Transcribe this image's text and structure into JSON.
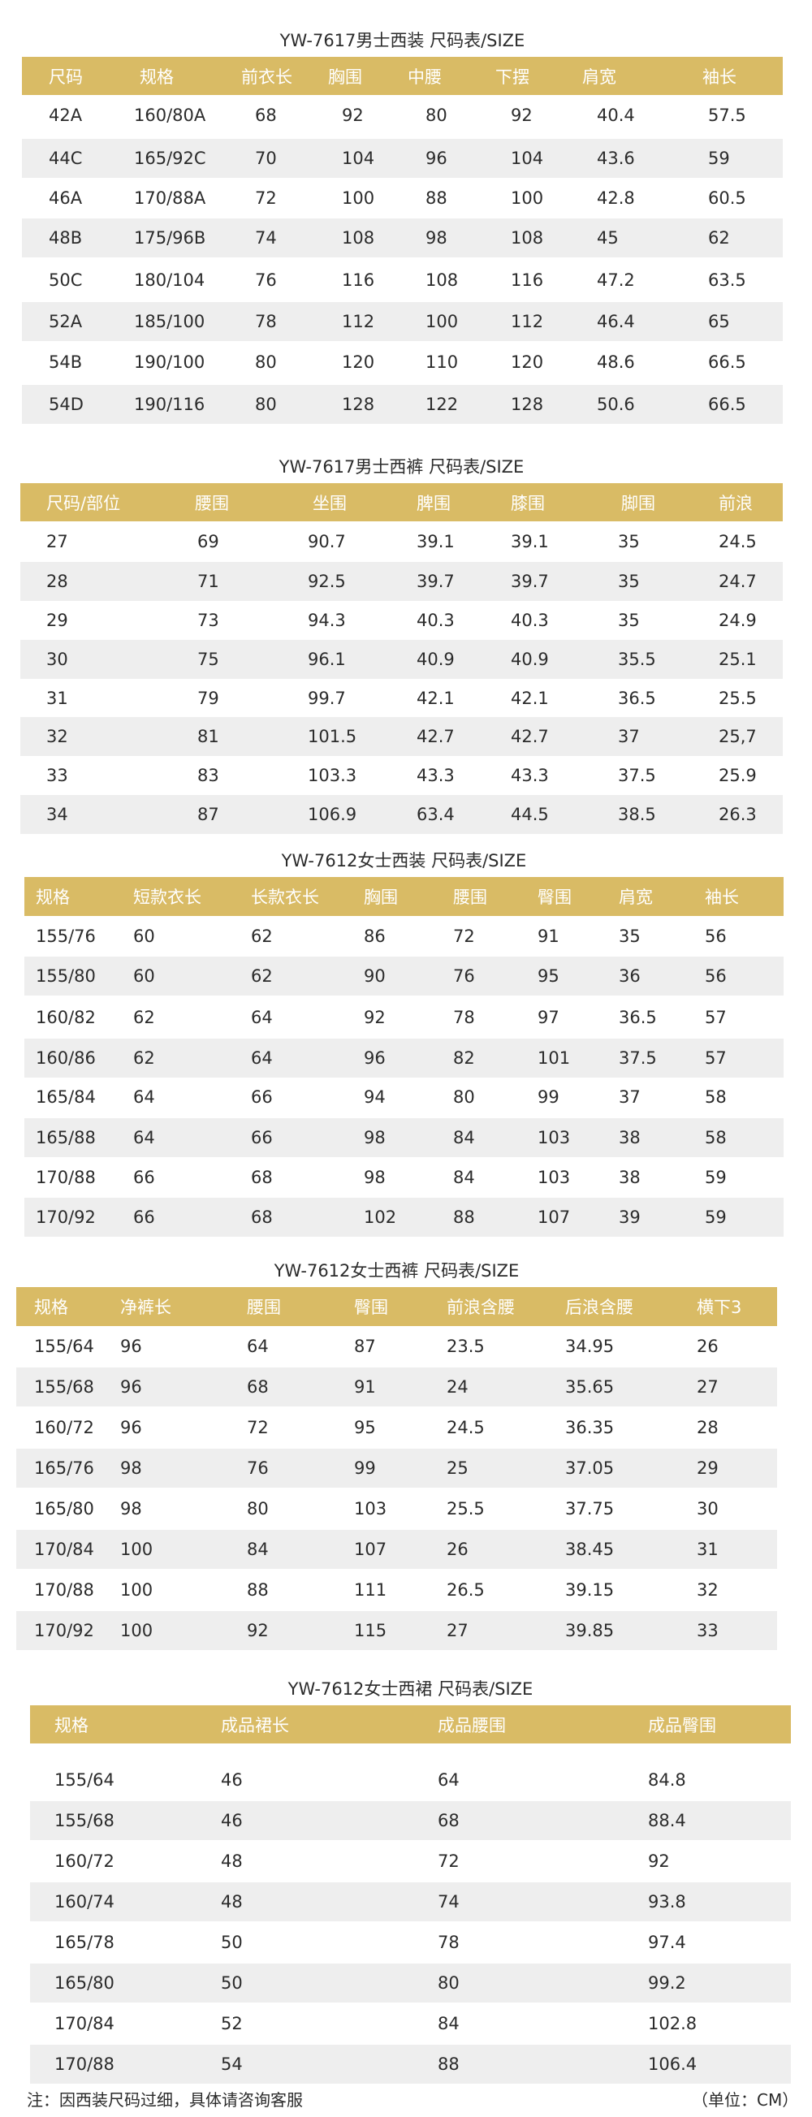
{
  "tables": [
    {
      "title": "YW-7617男士西装 尺码表/SIZE",
      "headers": [
        "尺码",
        "规格",
        "前衣长",
        "胸围",
        "中腰",
        "下摆",
        "肩宽",
        "袖长"
      ],
      "rows": [
        [
          "42A",
          "160/80A",
          "68",
          "92",
          "80",
          "92",
          "40.4",
          "57.5"
        ],
        [
          "44C",
          "165/92C",
          "70",
          "104",
          "96",
          "104",
          "43.6",
          "59"
        ],
        [
          "46A",
          "170/88A",
          "72",
          "100",
          "88",
          "100",
          "42.8",
          "60.5"
        ],
        [
          "48B",
          "175/96B",
          "74",
          "108",
          "98",
          "108",
          "45",
          "62"
        ],
        [
          "50C",
          "180/104",
          "76",
          "116",
          "108",
          "116",
          "47.2",
          "63.5"
        ],
        [
          "52A",
          "185/100",
          "78",
          "112",
          "100",
          "112",
          "46.4",
          "65"
        ],
        [
          "54B",
          "190/100",
          "80",
          "120",
          "110",
          "120",
          "48.6",
          "66.5"
        ],
        [
          "54D",
          "190/116",
          "80",
          "128",
          "122",
          "128",
          "50.6",
          "66.5"
        ]
      ]
    },
    {
      "title": "YW-7617男士西裤 尺码表/SIZE",
      "headers": [
        "尺码/部位",
        "腰围",
        "坐围",
        "脾围",
        "膝围",
        "脚围",
        "前浪"
      ],
      "rows": [
        [
          "27",
          "69",
          "90.7",
          "39.1",
          "39.1",
          "35",
          "24.5"
        ],
        [
          "28",
          "71",
          "92.5",
          "39.7",
          "39.7",
          "35",
          "24.7"
        ],
        [
          "29",
          "73",
          "94.3",
          "40.3",
          "40.3",
          "35",
          "24.9"
        ],
        [
          "30",
          "75",
          "96.1",
          "40.9",
          "40.9",
          "35.5",
          "25.1"
        ],
        [
          "31",
          "79",
          "99.7",
          "42.1",
          "42.1",
          "36.5",
          "25.5"
        ],
        [
          "32",
          "81",
          "101.5",
          "42.7",
          "42.7",
          "37",
          "25,7"
        ],
        [
          "33",
          "83",
          "103.3",
          "43.3",
          "43.3",
          "37.5",
          "25.9"
        ],
        [
          "34",
          "87",
          "106.9",
          "63.4",
          "44.5",
          "38.5",
          "26.3"
        ]
      ]
    },
    {
      "title": "YW-7612女士西装 尺码表/SIZE",
      "headers": [
        "规格",
        "短款衣长",
        "长款衣长",
        "胸围",
        "腰围",
        "臀围",
        "肩宽",
        "袖长"
      ],
      "rows": [
        [
          "155/76",
          "60",
          "62",
          "86",
          "72",
          "91",
          "35",
          "56"
        ],
        [
          "155/80",
          "60",
          "62",
          "90",
          "76",
          "95",
          "36",
          "56"
        ],
        [
          "160/82",
          "62",
          "64",
          "92",
          "78",
          "97",
          "36.5",
          "57"
        ],
        [
          "160/86",
          "62",
          "64",
          "96",
          "82",
          "101",
          "37.5",
          "57"
        ],
        [
          "165/84",
          "64",
          "66",
          "94",
          "80",
          "99",
          "37",
          "58"
        ],
        [
          "165/88",
          "64",
          "66",
          "98",
          "84",
          "103",
          "38",
          "58"
        ],
        [
          "170/88",
          "66",
          "68",
          "98",
          "84",
          "103",
          "38",
          "59"
        ],
        [
          "170/92",
          "66",
          "68",
          "102",
          "88",
          "107",
          "39",
          "59"
        ]
      ]
    },
    {
      "title": "YW-7612女士西裤 尺码表/SIZE",
      "headers": [
        "规格",
        "净裤长",
        "腰围",
        "臀围",
        "前浪含腰",
        "后浪含腰",
        "横下3"
      ],
      "rows": [
        [
          "155/64",
          "96",
          "64",
          "87",
          "23.5",
          "34.95",
          "26"
        ],
        [
          "155/68",
          "96",
          "68",
          "91",
          "24",
          "35.65",
          "27"
        ],
        [
          "160/72",
          "96",
          "72",
          "95",
          "24.5",
          "36.35",
          "28"
        ],
        [
          "165/76",
          "98",
          "76",
          "99",
          "25",
          "37.05",
          "29"
        ],
        [
          "165/80",
          "98",
          "80",
          "103",
          "25.5",
          "37.75",
          "30"
        ],
        [
          "170/84",
          "100",
          "84",
          "107",
          "26",
          "38.45",
          "31"
        ],
        [
          "170/88",
          "100",
          "88",
          "111",
          "26.5",
          "39.15",
          "32"
        ],
        [
          "170/92",
          "100",
          "92",
          "115",
          "27",
          "39.85",
          "33"
        ]
      ]
    },
    {
      "title": "YW-7612女士西裙 尺码表/SIZE",
      "headers": [
        "规格",
        "成品裙长",
        "成品腰围",
        "成品臀围"
      ],
      "rows": [
        [
          "155/64",
          "46",
          "64",
          "84.8"
        ],
        [
          "155/68",
          "46",
          "68",
          "88.4"
        ],
        [
          "160/72",
          "48",
          "72",
          "92"
        ],
        [
          "160/74",
          "48",
          "74",
          "93.8"
        ],
        [
          "165/78",
          "50",
          "78",
          "97.4"
        ],
        [
          "165/80",
          "50",
          "80",
          "99.2"
        ],
        [
          "170/84",
          "52",
          "84",
          "102.8"
        ],
        [
          "170/88",
          "54",
          "88",
          "106.4"
        ]
      ]
    }
  ],
  "footer": {
    "note": "注：因西装尺码过细，具体请咨询客服",
    "unit": "（单位：CM）"
  },
  "colors": {
    "header_bg": "#d9bb65",
    "header_text": "#ffffff",
    "stripe_bg": "#eeeeee",
    "text": "#2b2b2b"
  }
}
